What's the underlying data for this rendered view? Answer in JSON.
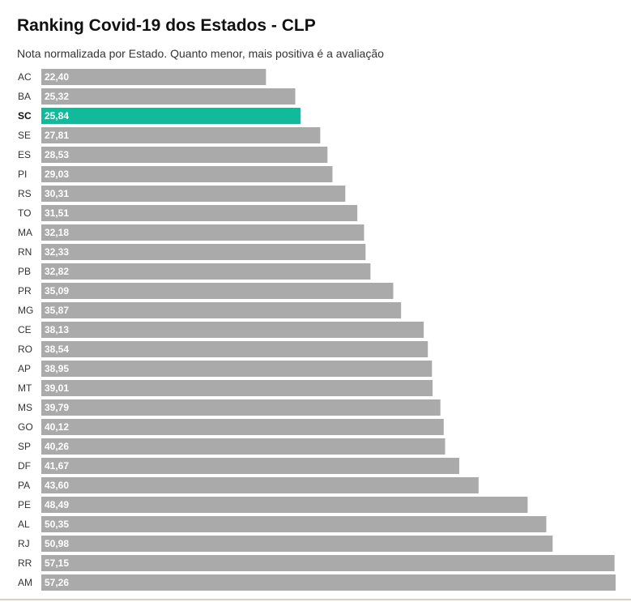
{
  "chart_data": {
    "type": "bar",
    "orientation": "horizontal",
    "title": "Ranking Covid-19 dos Estados - CLP",
    "subtitle": "Nota normalizada por Estado. Quanto menor, mais positiva é a avaliação",
    "xlabel": "",
    "ylabel": "",
    "xlim": [
      0,
      57.26
    ],
    "grid": false,
    "legend": "none",
    "highlight_category": "SC",
    "colors": {
      "default": "#aaaaaa",
      "highlight": "#10bb9b",
      "value_label": "#ffffff"
    },
    "categories": [
      "AC",
      "BA",
      "SC",
      "SE",
      "ES",
      "PI",
      "RS",
      "TO",
      "MA",
      "RN",
      "PB",
      "PR",
      "MG",
      "CE",
      "RO",
      "AP",
      "MT",
      "MS",
      "GO",
      "SP",
      "DF",
      "PA",
      "PE",
      "AL",
      "RJ",
      "RR",
      "AM"
    ],
    "values": [
      22.4,
      25.32,
      25.84,
      27.81,
      28.53,
      29.03,
      30.31,
      31.51,
      32.18,
      32.33,
      32.82,
      35.09,
      35.87,
      38.13,
      38.54,
      38.95,
      39.01,
      39.79,
      40.12,
      40.26,
      41.67,
      43.6,
      48.49,
      50.35,
      50.98,
      57.15,
      57.26
    ],
    "value_labels": [
      "22,40",
      "25,32",
      "25,84",
      "27,81",
      "28,53",
      "29,03",
      "30,31",
      "31,51",
      "32,18",
      "32,33",
      "32,82",
      "35,09",
      "35,87",
      "38,13",
      "38,54",
      "38,95",
      "39,01",
      "39,79",
      "40,12",
      "40,26",
      "41,67",
      "43,60",
      "48,49",
      "50,35",
      "50,98",
      "57,15",
      "57,26"
    ]
  }
}
